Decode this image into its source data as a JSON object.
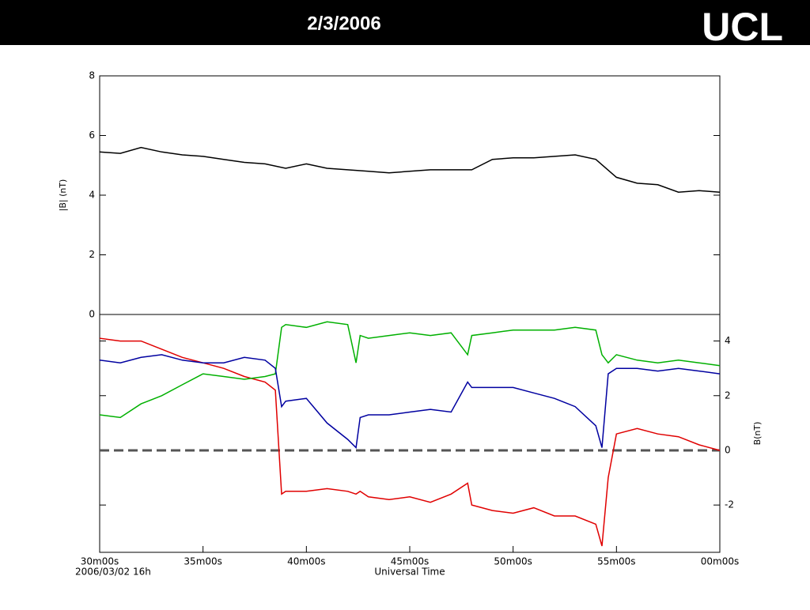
{
  "header": {
    "title": "2/3/2006",
    "logo": "UCL"
  },
  "chart_data": [
    {
      "type": "line",
      "ylabel": "|B| (nT)",
      "x": [
        30,
        31,
        32,
        33,
        34,
        35,
        36,
        37,
        38,
        39,
        40,
        41,
        42,
        43,
        44,
        45,
        46,
        47,
        48,
        49,
        50,
        51,
        52,
        53,
        54,
        55,
        56,
        57,
        58,
        59,
        60
      ],
      "series": [
        {
          "color": "#000000",
          "values": [
            5.45,
            5.4,
            5.6,
            5.45,
            5.35,
            5.3,
            5.2,
            5.1,
            5.05,
            4.9,
            5.05,
            4.9,
            4.85,
            4.8,
            4.75,
            4.8,
            4.85,
            4.85,
            4.85,
            5.2,
            5.25,
            5.25,
            5.3,
            5.35,
            5.2,
            4.6,
            4.4,
            4.35,
            4.1,
            4.15,
            4.1
          ]
        }
      ],
      "xlim": [
        30,
        60
      ],
      "ylim": [
        0,
        8
      ],
      "yticks": [
        0,
        2,
        4,
        6,
        8
      ]
    },
    {
      "type": "line",
      "ylabel": "B(nT)",
      "xlabel": "Universal Time",
      "date_label": "2006/03/02 16h",
      "x": [
        30,
        31,
        32,
        33,
        34,
        35,
        36,
        37,
        38,
        38.5,
        38.8,
        39,
        40,
        41,
        42,
        42.4,
        42.6,
        43,
        44,
        45,
        46,
        47,
        47.8,
        48,
        49,
        50,
        51,
        52,
        53,
        54,
        54.3,
        54.6,
        55,
        56,
        57,
        58,
        59,
        60
      ],
      "series": [
        {
          "color": "#e00000",
          "axis": "y2",
          "values": [
            4.1,
            4.0,
            4.0,
            3.7,
            3.4,
            3.2,
            3.0,
            2.7,
            2.5,
            2.2,
            -1.6,
            -1.5,
            -1.5,
            -1.4,
            -1.5,
            -1.6,
            -1.5,
            -1.7,
            -1.8,
            -1.7,
            -1.9,
            -1.6,
            -1.2,
            -2.0,
            -2.2,
            -2.3,
            -2.1,
            -2.4,
            -2.4,
            -2.7,
            -3.5,
            -1.0,
            0.6,
            0.8,
            0.6,
            0.5,
            0.2,
            0.0
          ]
        },
        {
          "color": "#00b000",
          "axis": "y2",
          "values": [
            1.3,
            1.2,
            1.7,
            2.0,
            2.4,
            2.8,
            2.7,
            2.6,
            2.7,
            2.8,
            4.5,
            4.6,
            4.5,
            4.7,
            4.6,
            3.2,
            4.2,
            4.1,
            4.2,
            4.3,
            4.2,
            4.3,
            3.5,
            4.2,
            4.3,
            4.4,
            4.4,
            4.4,
            4.5,
            4.4,
            3.5,
            3.2,
            3.5,
            3.3,
            3.2,
            3.3,
            3.2,
            3.1
          ]
        },
        {
          "color": "#0000a0",
          "axis": "y2",
          "values": [
            3.3,
            3.2,
            3.4,
            3.5,
            3.3,
            3.2,
            3.2,
            3.4,
            3.3,
            3.0,
            1.6,
            1.8,
            1.9,
            1.0,
            0.4,
            0.1,
            1.2,
            1.3,
            1.3,
            1.4,
            1.5,
            1.4,
            2.5,
            2.3,
            2.3,
            2.3,
            2.1,
            1.9,
            1.6,
            0.9,
            0.1,
            2.8,
            3.0,
            3.0,
            2.9,
            3.0,
            2.9,
            2.8
          ]
        }
      ],
      "xlim": [
        30,
        60
      ],
      "xticks": [
        {
          "value": 30,
          "label": "30m00s"
        },
        {
          "value": 35,
          "label": "35m00s"
        },
        {
          "value": 40,
          "label": "40m00s"
        },
        {
          "value": 45,
          "label": "45m00s"
        },
        {
          "value": 50,
          "label": "50m00s"
        },
        {
          "value": 55,
          "label": "55m00s"
        },
        {
          "value": 60,
          "label": "00m00s"
        }
      ],
      "y2lim": [
        -3.73,
        4.97
      ],
      "y2ticks": [
        -2,
        0,
        2,
        4
      ],
      "zero_line": {
        "value": 0,
        "color": "#555555"
      }
    }
  ]
}
